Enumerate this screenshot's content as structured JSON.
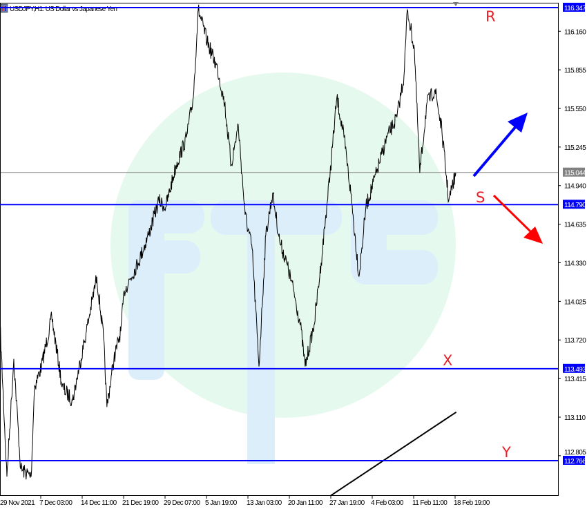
{
  "window": {
    "title": "USDJPY,H1:  US Dollar vs Japanese Yen"
  },
  "colors": {
    "level_line": "#0000ff",
    "label_red": "#e8202a",
    "arrow_up": "#0000ff",
    "arrow_down": "#ff0000",
    "price_line": "#000000",
    "current_price_tag": "#808080",
    "watermark_circle": "#e6f9ee",
    "watermark_letters": "#dceefa"
  },
  "watermark": "FTC",
  "chart_data": {
    "type": "line",
    "title": "USDJPY,H1:  US Dollar vs Japanese Yen",
    "grid": false,
    "ylim": [
      112.49,
      116.41
    ],
    "y_ticks": [
      "116.160",
      "115.855",
      "115.550",
      "115.245",
      "114.940",
      "114.635",
      "114.330",
      "114.025",
      "113.720",
      "113.415",
      "113.110",
      "112.805"
    ],
    "x_ticks": [
      {
        "label": "29 Nov 2021",
        "t": "2021-11-29T00:00"
      },
      {
        "label": "7 Dec 03:00",
        "t": "2021-12-07T03:00"
      },
      {
        "label": "14 Dec 11:00",
        "t": "2021-12-14T11:00"
      },
      {
        "label": "21 Dec 19:00",
        "t": "2021-12-21T19:00"
      },
      {
        "label": "29 Dec 07:00",
        "t": "2021-12-29T07:00"
      },
      {
        "label": "5 Jan 19:00",
        "t": "2022-01-05T19:00"
      },
      {
        "label": "13 Jan 03:00",
        "t": "2022-01-13T03:00"
      },
      {
        "label": "20 Jan 11:00",
        "t": "2022-01-20T11:00"
      },
      {
        "label": "27 Jan 19:00",
        "t": "2022-01-27T19:00"
      },
      {
        "label": "4 Feb 03:00",
        "t": "2022-02-04T03:00"
      },
      {
        "label": "11 Feb 11:00",
        "t": "2022-02-11T11:00"
      },
      {
        "label": "18 Feb 19:00",
        "t": "2022-02-18T19:00"
      }
    ],
    "series": [
      {
        "points": [
          [
            "2021-11-29T00:00",
            113.84
          ],
          [
            "2021-11-30T09:00",
            112.64
          ],
          [
            "2021-12-01T18:00",
            113.57
          ],
          [
            "2021-12-03T03:00",
            112.7
          ],
          [
            "2021-12-05T05:00",
            112.64
          ],
          [
            "2021-12-05T21:00",
            113.35
          ],
          [
            "2021-12-07T06:00",
            113.51
          ],
          [
            "2021-12-09T02:00",
            113.9
          ],
          [
            "2021-12-10T22:00",
            113.35
          ],
          [
            "2021-12-12T18:00",
            113.24
          ],
          [
            "2021-12-15T05:00",
            113.79
          ],
          [
            "2021-12-17T01:00",
            114.22
          ],
          [
            "2021-12-18T06:00",
            113.73
          ],
          [
            "2021-12-18T20:00",
            113.19
          ],
          [
            "2021-12-20T02:00",
            113.57
          ],
          [
            "2021-12-21T07:00",
            113.79
          ],
          [
            "2021-12-21T22:00",
            114.11
          ],
          [
            "2021-12-24T10:00",
            114.33
          ],
          [
            "2021-12-26T07:00",
            114.55
          ],
          [
            "2021-12-28T04:00",
            114.82
          ],
          [
            "2021-12-29T10:00",
            114.77
          ],
          [
            "2021-12-31T07:00",
            115.1
          ],
          [
            "2022-01-02T04:00",
            115.32
          ],
          [
            "2022-01-03T10:00",
            115.64
          ],
          [
            "2022-01-04T07:00",
            116.33
          ],
          [
            "2022-01-05T22:00",
            116.08
          ],
          [
            "2022-01-07T18:00",
            115.86
          ],
          [
            "2022-01-09T00:00",
            115.59
          ],
          [
            "2022-01-10T04:00",
            115.1
          ],
          [
            "2022-01-11T10:00",
            115.42
          ],
          [
            "2022-01-12T15:00",
            114.71
          ],
          [
            "2022-01-13T21:00",
            114.44
          ],
          [
            "2022-01-15T02:00",
            113.51
          ],
          [
            "2022-01-16T07:00",
            114.55
          ],
          [
            "2022-01-17T12:00",
            114.88
          ],
          [
            "2022-01-18T18:00",
            114.5
          ],
          [
            "2022-01-19T23:00",
            114.33
          ],
          [
            "2022-01-21T05:00",
            114.11
          ],
          [
            "2022-01-22T10:00",
            113.84
          ],
          [
            "2022-01-23T06:00",
            113.51
          ],
          [
            "2022-01-24T20:00",
            113.84
          ],
          [
            "2022-01-26T02:00",
            114.33
          ],
          [
            "2022-01-27T16:00",
            115.04
          ],
          [
            "2022-01-28T21:00",
            115.64
          ],
          [
            "2022-01-30T03:00",
            115.32
          ],
          [
            "2022-01-31T08:00",
            114.88
          ],
          [
            "2022-02-01T19:00",
            114.22
          ],
          [
            "2022-02-03T00:00",
            114.77
          ],
          [
            "2022-02-04T21:00",
            115.04
          ],
          [
            "2022-02-06T17:00",
            115.32
          ],
          [
            "2022-02-08T12:00",
            115.48
          ],
          [
            "2022-02-09T18:00",
            115.81
          ],
          [
            "2022-02-10T08:00",
            116.33
          ],
          [
            "2022-02-11T14:00",
            116.02
          ],
          [
            "2022-02-12T13:00",
            115.04
          ],
          [
            "2022-02-13T19:00",
            115.59
          ],
          [
            "2022-02-15T06:00",
            115.7
          ],
          [
            "2022-02-16T11:00",
            115.37
          ],
          [
            "2022-02-17T16:00",
            114.82
          ],
          [
            "2022-02-18T22:00",
            115.04
          ]
        ]
      }
    ],
    "current_price": "115.044",
    "levels": [
      {
        "label": "R",
        "price": "116.347"
      },
      {
        "label": "S",
        "price": "114.790"
      },
      {
        "label": "X",
        "price": "113.493"
      },
      {
        "label": "Y",
        "price": "112.766"
      }
    ],
    "trendline": {
      "from": [
        "2022-01-27T19:00",
        112.49
      ],
      "to": [
        "2022-02-19T00:00",
        113.15
      ]
    },
    "annotations": [
      {
        "type": "arrow",
        "direction": "up-right",
        "color": "blue"
      },
      {
        "type": "arrow",
        "direction": "down-right",
        "color": "red"
      }
    ]
  }
}
